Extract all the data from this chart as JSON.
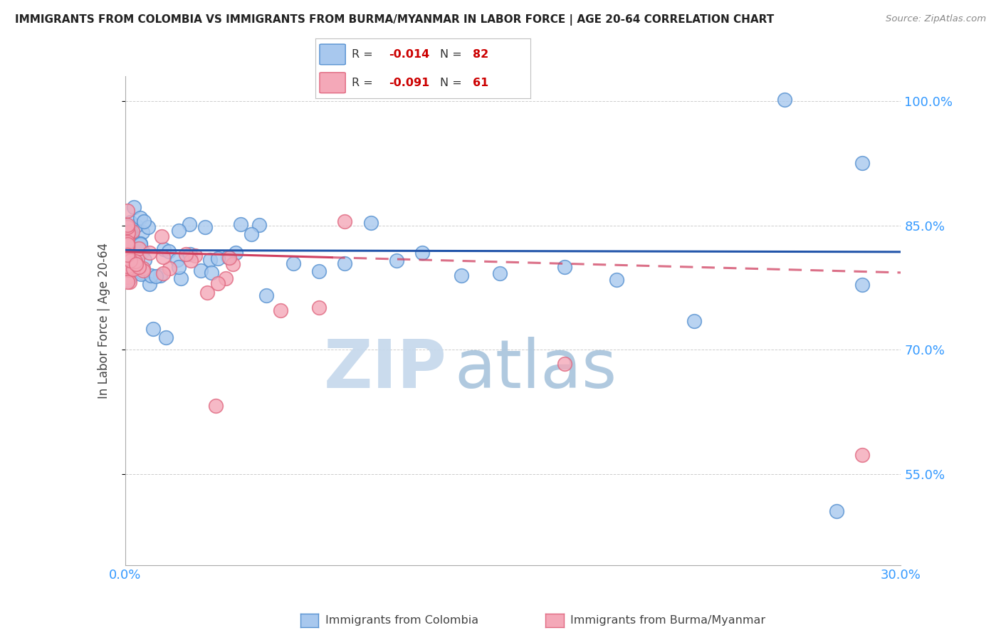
{
  "title": "IMMIGRANTS FROM COLOMBIA VS IMMIGRANTS FROM BURMA/MYANMAR IN LABOR FORCE | AGE 20-64 CORRELATION CHART",
  "source": "Source: ZipAtlas.com",
  "ylabel": "In Labor Force | Age 20-64",
  "legend_label_colombia": "Immigrants from Colombia",
  "legend_label_burma": "Immigrants from Burma/Myanmar",
  "R_colombia": -0.014,
  "N_colombia": 82,
  "R_burma": -0.091,
  "N_burma": 61,
  "xlim": [
    0.0,
    0.3
  ],
  "ylim": [
    0.44,
    1.03
  ],
  "ytick_vals": [
    0.55,
    0.7,
    0.85,
    1.0
  ],
  "ytick_labels": [
    "55.0%",
    "70.0%",
    "85.0%",
    "100.0%"
  ],
  "xtick_labels": [
    "0.0%",
    "30.0%"
  ],
  "colombia_color": "#A8C8EE",
  "burma_color": "#F4A8B8",
  "colombia_edge_color": "#5590D0",
  "burma_edge_color": "#E06880",
  "colombia_line_color": "#2255AA",
  "burma_line_color": "#D04060",
  "watermark_color": "#C8DCF0",
  "background_color": "#FFFFFF",
  "grid_color": "#C8C8C8",
  "title_color": "#222222",
  "axis_label_color": "#444444",
  "axis_tick_color": "#3399FF",
  "source_color": "#888888"
}
